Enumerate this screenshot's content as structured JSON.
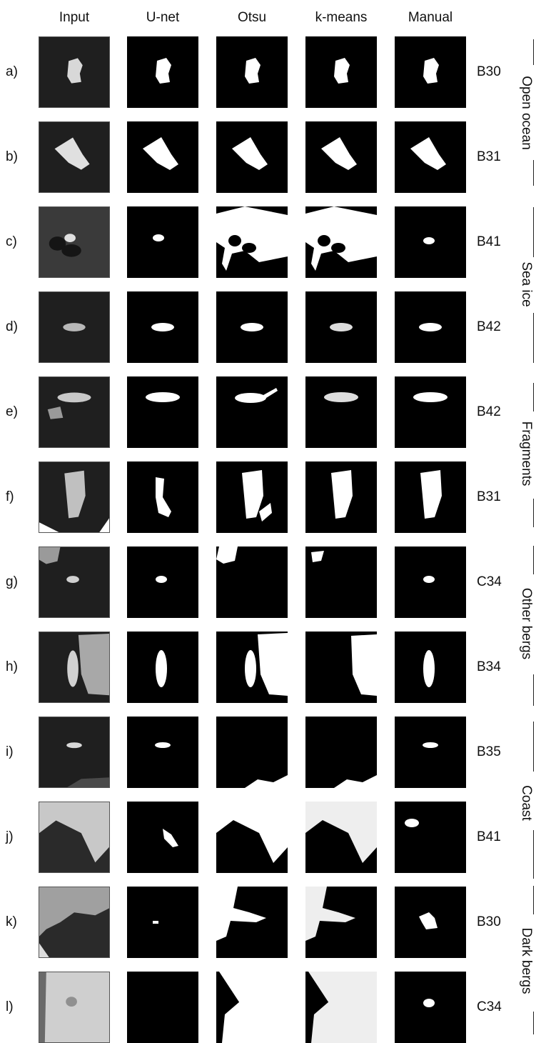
{
  "columns": [
    "Input",
    "U-net",
    "Otsu",
    "k-means",
    "Manual"
  ],
  "rows": [
    {
      "label": "a)",
      "code": "B30"
    },
    {
      "label": "b)",
      "code": "B31"
    },
    {
      "label": "c)",
      "code": "B41"
    },
    {
      "label": "d)",
      "code": "B42"
    },
    {
      "label": "e)",
      "code": "B42"
    },
    {
      "label": "f)",
      "code": "B31"
    },
    {
      "label": "g)",
      "code": "C34"
    },
    {
      "label": "h)",
      "code": "B34"
    },
    {
      "label": "i)",
      "code": "B35"
    },
    {
      "label": "j)",
      "code": "B41"
    },
    {
      "label": "k)",
      "code": "B30"
    },
    {
      "label": "l)",
      "code": "C34"
    }
  ],
  "categories": [
    "Open ocean",
    "Sea ice",
    "Fragments",
    "Other bergs",
    "Coast",
    "Dark bergs"
  ],
  "colors": {
    "mask_background": "#000000",
    "mask_foreground": "#ffffff",
    "input_background": "#1f1f1f"
  }
}
